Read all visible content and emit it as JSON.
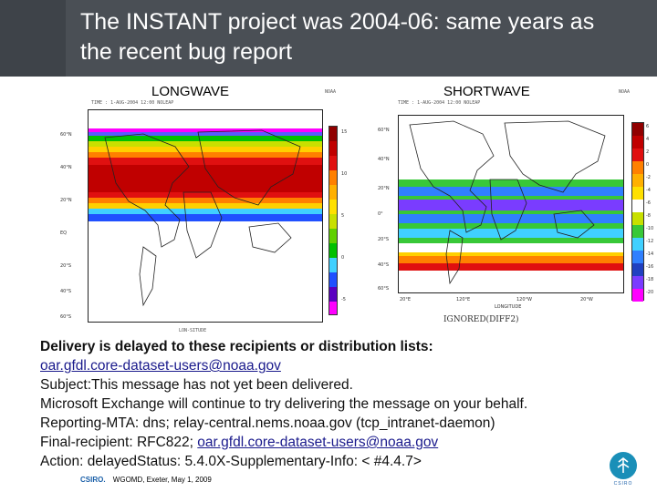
{
  "slide": {
    "title_line1": "The INSTANT project was 2004-06: same years as",
    "title_line2": "the recent bug report"
  },
  "figures": {
    "left": {
      "label": "LONGWAVE",
      "fine_header": "TIME : 1-AUG-2004 12:00 NOLEAP",
      "logo_text": "NOAA",
      "lat_ticks": [
        "60°N",
        "40°N",
        "20°N",
        "EQ",
        "20°S",
        "40°S",
        "60°S"
      ],
      "colorbar_ticks": [
        "15",
        "10",
        "5",
        "0",
        "-5"
      ],
      "bottom_text": "LON-SITUDE"
    },
    "right": {
      "label": "SHORTWAVE",
      "fine_header": "TIME : 1-AUG-2004 12:00 NOLEAP",
      "logo_text": "NOAA",
      "lat_ticks": [
        "60°N",
        "40°N",
        "20°N",
        "0°",
        "20°S",
        "40°S",
        "60°S"
      ],
      "lon_ticks": [
        "20°E",
        "120°E",
        "120°W",
        "20°W"
      ],
      "lon_label": "LONGITUDE",
      "colorbar_ticks": [
        "6",
        "4",
        "2",
        "0",
        "-2",
        "-4",
        "-6",
        "-8",
        "-10",
        "-12",
        "-14",
        "-16",
        "-18",
        "-20"
      ],
      "bottom_text": "IGNORED(DIFF2)"
    }
  },
  "message": {
    "line1": "Delivery is delayed to these recipients or distribution lists:",
    "line2_link": "oar.gfdl.core-dataset-users@noaa.gov",
    "line3": "Subject:This message has not yet been delivered.",
    "line4": "Microsoft Exchange will continue to try delivering the message on your behalf.",
    "line5": "Reporting-MTA: dns; relay-central.nems.noaa.gov (tcp_intranet-daemon)",
    "line6_prefix": "Final-recipient: RFC822; ",
    "line6_link": "oar.gfdl.core-dataset-users@noaa.gov",
    "line7": "Action: delayedStatus: 5.4.0X-Supplementary-Info: < #4.4.7>"
  },
  "footer": {
    "brand": "CSIRO.",
    "text": "WGOMD, Exeter, May 1, 2009",
    "logo_text": "CSIRO"
  },
  "colors": {
    "header": "#4a4f55",
    "link": "#1a1a8c",
    "brand": "#1a5fa8"
  }
}
